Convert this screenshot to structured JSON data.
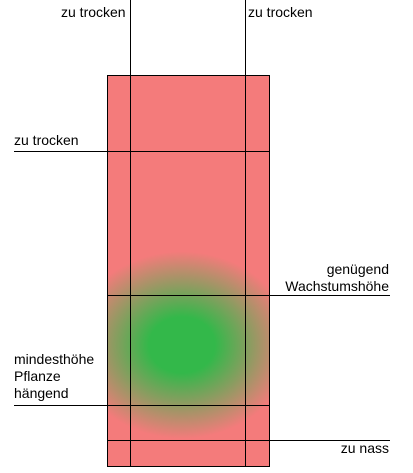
{
  "colors": {
    "dry_red": "#f47b7b",
    "optimal_green": "#33b84a",
    "line": "#000000"
  },
  "labels": {
    "top_left": "zu trocken",
    "top_right": "zu trocken",
    "left_upper": "zu trocken",
    "growth_height_line1": "genügend",
    "growth_height_line2": "Wachstumshöhe",
    "min_height_line1": "mindesthöhe",
    "min_height_line2": "Pflanze",
    "min_height_line3": "hängend",
    "bottom_right": "zu nass"
  }
}
